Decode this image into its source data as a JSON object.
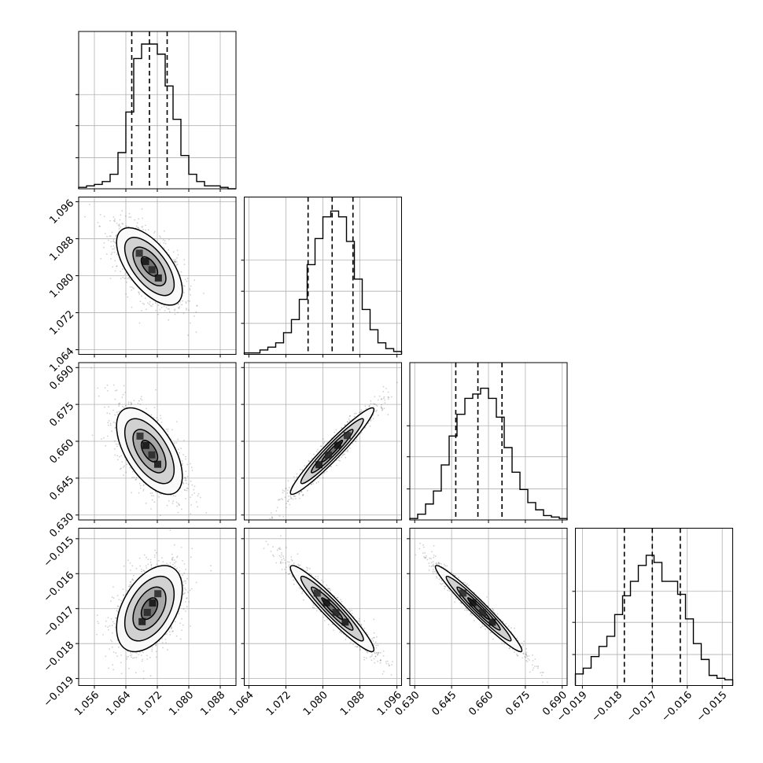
{
  "chart_data": {
    "type": "corner",
    "grid": true,
    "line_color": "#000000",
    "scatter_color": "#555555",
    "params": [
      {
        "range": [
          1.052,
          1.092
        ],
        "ticks": [
          1.056,
          1.064,
          1.072,
          1.08,
          1.088
        ],
        "tick_labels": [
          "1.056",
          "1.064",
          "1.072",
          "1.080",
          "1.088"
        ],
        "quantiles": [
          1.0655,
          1.07,
          1.0745
        ]
      },
      {
        "range": [
          1.063,
          1.097
        ],
        "ticks": [
          1.064,
          1.072,
          1.08,
          1.088,
          1.096
        ],
        "tick_labels": [
          "1.064",
          "1.072",
          "1.080",
          "1.088",
          "1.096"
        ],
        "quantiles": [
          1.0768,
          1.082,
          1.0865
        ]
      },
      {
        "range": [
          0.628,
          0.692
        ],
        "ticks": [
          0.63,
          0.645,
          0.66,
          0.675,
          0.69
        ],
        "tick_labels": [
          "0.630",
          "0.645",
          "0.660",
          "0.675",
          "0.690"
        ],
        "quantiles": [
          0.6467,
          0.6557,
          0.6655
        ]
      },
      {
        "range": [
          -0.0192,
          -0.0147
        ],
        "ticks": [
          -0.019,
          -0.018,
          -0.017,
          -0.016,
          -0.015
        ],
        "tick_labels": [
          "−0.019",
          "−0.018",
          "−0.017",
          "−0.016",
          "−0.015"
        ],
        "quantiles": [
          -0.0178,
          -0.017,
          -0.0162
        ]
      }
    ],
    "histograms": [
      {
        "counts": [
          0.01,
          0.02,
          0.03,
          0.05,
          0.1,
          0.25,
          0.53,
          0.9,
          1.0,
          1.0,
          0.93,
          0.71,
          0.48,
          0.23,
          0.1,
          0.05,
          0.02,
          0.02,
          0.01,
          0.0
        ]
      },
      {
        "counts": [
          0.01,
          0.01,
          0.03,
          0.05,
          0.08,
          0.15,
          0.24,
          0.38,
          0.62,
          0.8,
          0.95,
          0.99,
          0.95,
          0.78,
          0.52,
          0.31,
          0.17,
          0.08,
          0.04,
          0.02
        ]
      },
      {
        "counts": [
          0.01,
          0.04,
          0.11,
          0.2,
          0.38,
          0.58,
          0.73,
          0.84,
          0.87,
          0.91,
          0.84,
          0.71,
          0.5,
          0.33,
          0.21,
          0.12,
          0.07,
          0.03,
          0.02,
          0.01
        ]
      },
      {
        "counts": [
          0.08,
          0.12,
          0.2,
          0.27,
          0.34,
          0.49,
          0.62,
          0.72,
          0.83,
          0.9,
          0.85,
          0.72,
          0.72,
          0.63,
          0.46,
          0.29,
          0.18,
          0.07,
          0.05,
          0.04
        ]
      }
    ],
    "pairs": [
      {
        "row": 1,
        "col": 0,
        "center": [
          1.07,
          1.082
        ],
        "sd": [
          0.0038,
          0.0038
        ],
        "rho": -0.62
      },
      {
        "row": 2,
        "col": 0,
        "center": [
          1.07,
          0.656
        ],
        "sd": [
          0.0038,
          0.008
        ],
        "rho": -0.58
      },
      {
        "row": 2,
        "col": 1,
        "center": [
          1.082,
          0.656
        ],
        "sd": [
          0.0041,
          0.008
        ],
        "rho": 0.96
      },
      {
        "row": 3,
        "col": 0,
        "center": [
          1.07,
          -0.017
        ],
        "sd": [
          0.0038,
          0.00056
        ],
        "rho": 0.45
      },
      {
        "row": 3,
        "col": 1,
        "center": [
          1.082,
          -0.017
        ],
        "sd": [
          0.0041,
          0.00056
        ],
        "rho": -0.95
      },
      {
        "row": 3,
        "col": 2,
        "center": [
          0.656,
          -0.017
        ],
        "sd": [
          0.008,
          0.00056
        ],
        "rho": -0.97
      }
    ]
  }
}
